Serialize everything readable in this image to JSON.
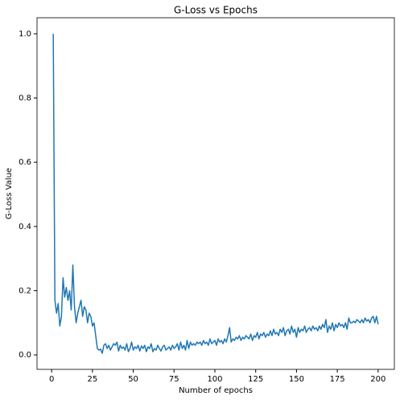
{
  "chart_data": {
    "type": "line",
    "title": "G-Loss vs Epochs",
    "x_label": "Number of epochs",
    "y_label": "G-Loss Value",
    "color": "#1f77b4",
    "x": [
      1,
      2,
      3,
      4,
      5,
      6,
      7,
      8,
      9,
      10,
      11,
      12,
      13,
      14,
      15,
      16,
      17,
      18,
      19,
      20,
      21,
      22,
      23,
      24,
      25,
      26,
      27,
      28,
      29,
      30,
      31,
      32,
      33,
      34,
      35,
      36,
      37,
      38,
      39,
      40,
      41,
      42,
      43,
      44,
      45,
      46,
      47,
      48,
      49,
      50,
      51,
      52,
      53,
      54,
      55,
      56,
      57,
      58,
      59,
      60,
      61,
      62,
      63,
      64,
      65,
      66,
      67,
      68,
      69,
      70,
      71,
      72,
      73,
      74,
      75,
      76,
      77,
      78,
      79,
      80,
      81,
      82,
      83,
      84,
      85,
      86,
      87,
      88,
      89,
      90,
      91,
      92,
      93,
      94,
      95,
      96,
      97,
      98,
      99,
      100,
      101,
      102,
      103,
      104,
      105,
      106,
      107,
      108,
      109,
      110,
      111,
      112,
      113,
      114,
      115,
      116,
      117,
      118,
      119,
      120,
      121,
      122,
      123,
      124,
      125,
      126,
      127,
      128,
      129,
      130,
      131,
      132,
      133,
      134,
      135,
      136,
      137,
      138,
      139,
      140,
      141,
      142,
      143,
      144,
      145,
      146,
      147,
      148,
      149,
      150,
      151,
      152,
      153,
      154,
      155,
      156,
      157,
      158,
      159,
      160,
      161,
      162,
      163,
      164,
      165,
      166,
      167,
      168,
      169,
      170,
      171,
      172,
      173,
      174,
      175,
      176,
      177,
      178,
      179,
      180,
      181,
      182,
      183,
      184,
      185,
      186,
      187,
      188,
      189,
      190,
      191,
      192,
      193,
      194,
      195,
      196,
      197,
      198,
      199,
      200
    ],
    "values": [
      1.0,
      0.17,
      0.13,
      0.16,
      0.09,
      0.12,
      0.24,
      0.18,
      0.21,
      0.17,
      0.2,
      0.14,
      0.28,
      0.15,
      0.1,
      0.13,
      0.15,
      0.17,
      0.12,
      0.15,
      0.14,
      0.1,
      0.13,
      0.12,
      0.09,
      0.1,
      0.06,
      0.02,
      0.015,
      0.018,
      0.005,
      0.03,
      0.035,
      0.02,
      0.03,
      0.015,
      0.025,
      0.035,
      0.03,
      0.04,
      0.012,
      0.03,
      0.02,
      0.025,
      0.015,
      0.035,
      0.01,
      0.02,
      0.04,
      0.015,
      0.025,
      0.02,
      0.03,
      0.012,
      0.028,
      0.02,
      0.03,
      0.01,
      0.025,
      0.02,
      0.035,
      0.01,
      0.02,
      0.015,
      0.03,
      0.02,
      0.012,
      0.025,
      0.03,
      0.015,
      0.02,
      0.025,
      0.015,
      0.03,
      0.02,
      0.025,
      0.035,
      0.015,
      0.04,
      0.02,
      0.03,
      0.015,
      0.045,
      0.02,
      0.04,
      0.03,
      0.035,
      0.03,
      0.04,
      0.035,
      0.04,
      0.03,
      0.045,
      0.035,
      0.04,
      0.03,
      0.05,
      0.035,
      0.04,
      0.045,
      0.03,
      0.05,
      0.04,
      0.045,
      0.035,
      0.05,
      0.04,
      0.06,
      0.085,
      0.04,
      0.05,
      0.045,
      0.055,
      0.05,
      0.06,
      0.045,
      0.055,
      0.05,
      0.06,
      0.055,
      0.05,
      0.065,
      0.045,
      0.06,
      0.055,
      0.07,
      0.05,
      0.065,
      0.06,
      0.07,
      0.055,
      0.065,
      0.06,
      0.075,
      0.06,
      0.08,
      0.065,
      0.07,
      0.06,
      0.08,
      0.07,
      0.085,
      0.06,
      0.075,
      0.08,
      0.065,
      0.09,
      0.07,
      0.08,
      0.055,
      0.085,
      0.07,
      0.08,
      0.075,
      0.09,
      0.07,
      0.08,
      0.085,
      0.075,
      0.09,
      0.08,
      0.085,
      0.075,
      0.09,
      0.08,
      0.095,
      0.085,
      0.11,
      0.07,
      0.09,
      0.08,
      0.1,
      0.075,
      0.095,
      0.085,
      0.1,
      0.09,
      0.095,
      0.085,
      0.1,
      0.08,
      0.115,
      0.1,
      0.1,
      0.105,
      0.1,
      0.11,
      0.105,
      0.1,
      0.11,
      0.1,
      0.115,
      0.105,
      0.11,
      0.1,
      0.115,
      0.12,
      0.1,
      0.12,
      0.095
    ],
    "xlim": [
      -8.95,
      209.95
    ],
    "ylim": [
      -0.045,
      1.05
    ],
    "xticks": [
      0,
      25,
      50,
      75,
      100,
      125,
      150,
      175,
      200
    ],
    "yticks": [
      {
        "value": 0,
        "label": "0.0"
      },
      0.2,
      0.4,
      0.6,
      0.8,
      {
        "value": 1,
        "label": "1.0"
      }
    ]
  }
}
